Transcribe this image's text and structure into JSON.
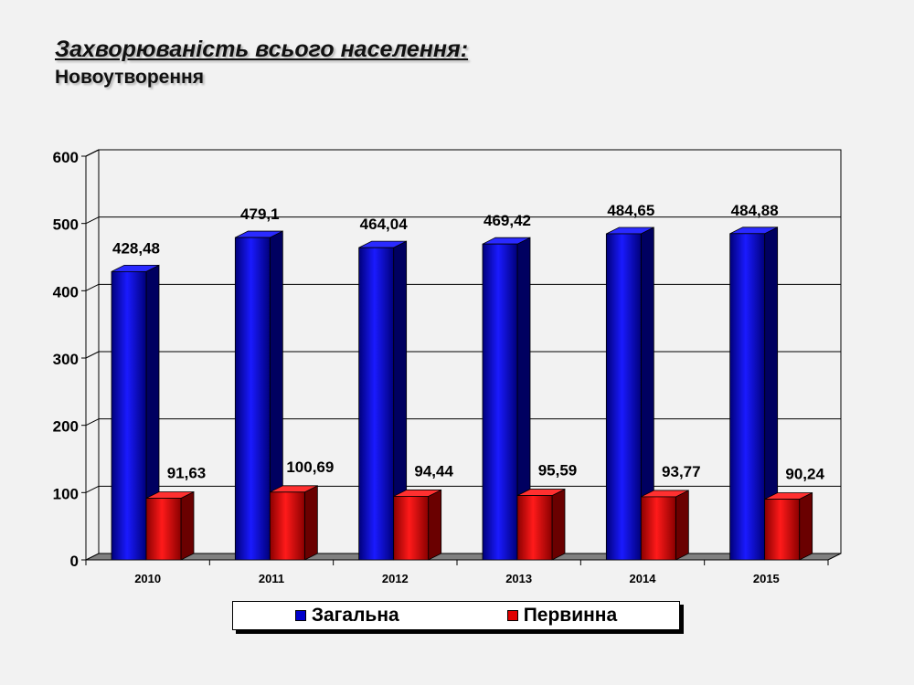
{
  "title": "Захворюваність всього населення:",
  "subtitle": "Новоутворення",
  "colors": {
    "series1": "#0000cc",
    "series2": "#e00000"
  },
  "chart_data": {
    "type": "bar",
    "categories": [
      "2010",
      "2011",
      "2012",
      "2013",
      "2014",
      "2015"
    ],
    "series": [
      {
        "name": "Загальна",
        "values": [
          428.48,
          479.1,
          464.04,
          469.42,
          484.65,
          484.88
        ],
        "labels": [
          "428,48",
          "479,1",
          "464,04",
          "469,42",
          "484,65",
          "484,88"
        ]
      },
      {
        "name": "Первинна",
        "values": [
          91.63,
          100.69,
          94.44,
          95.59,
          93.77,
          90.24
        ],
        "labels": [
          "91,63",
          "100,69",
          "94,44",
          "95,59",
          "93,77",
          "90,24"
        ]
      }
    ],
    "yticks": [
      "0",
      "100",
      "200",
      "300",
      "400",
      "500",
      "600"
    ],
    "ylim": [
      0,
      600
    ],
    "grid": true,
    "legend_position": "bottom"
  }
}
